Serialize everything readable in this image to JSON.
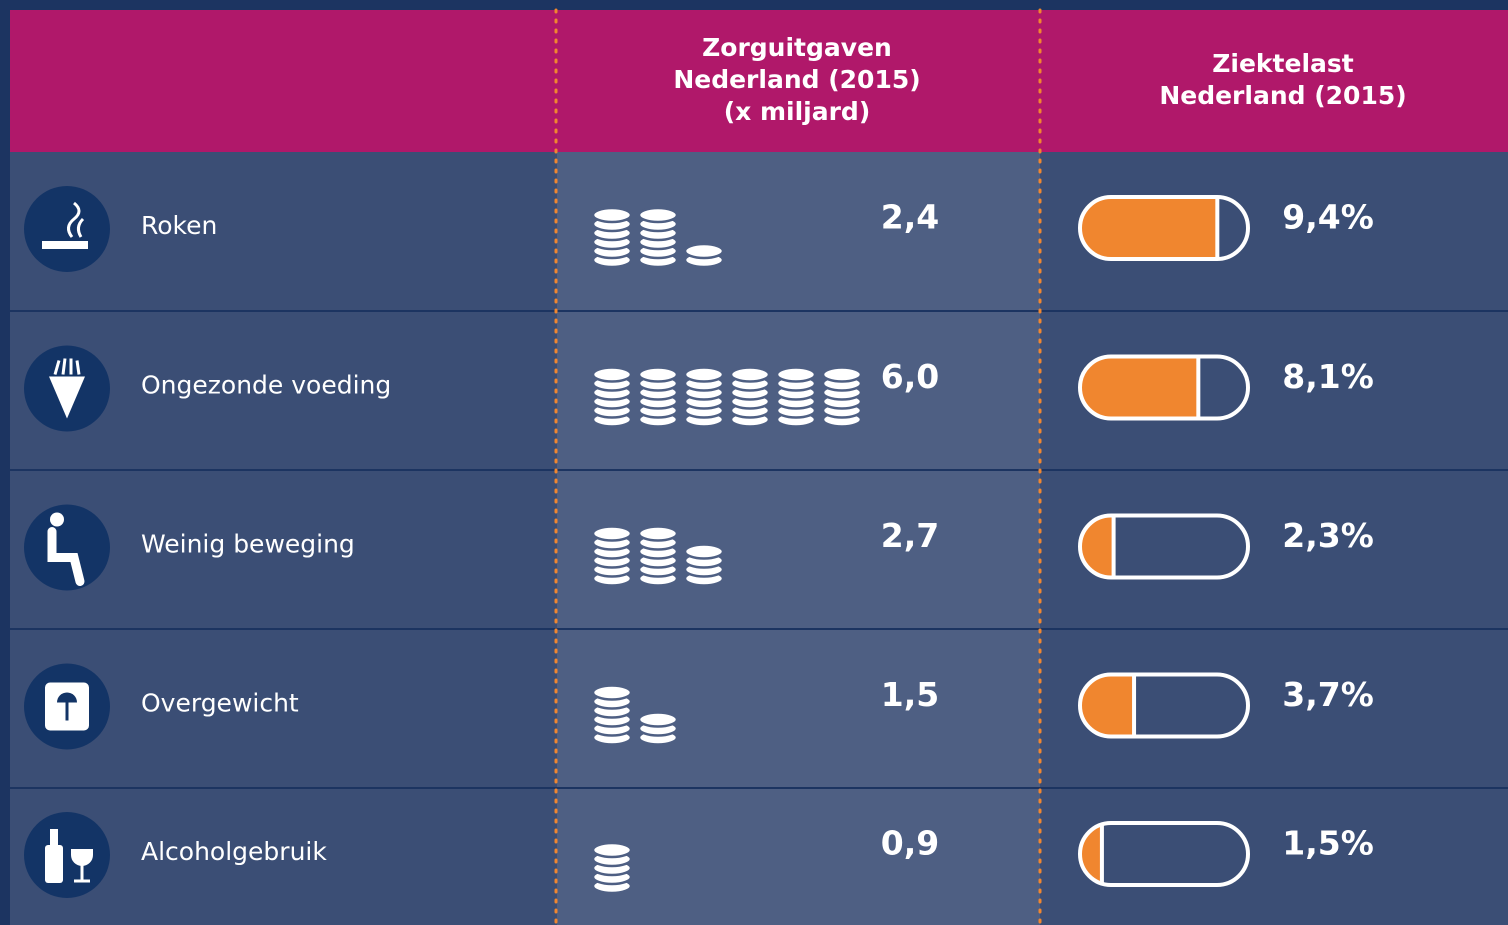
{
  "header": {
    "costs": [
      "Zorguitgaven",
      "Nederland (2015)",
      "(x miljard)"
    ],
    "burden": [
      "Ziektelast",
      "Nederland (2015)"
    ]
  },
  "rows": [
    {
      "label": "Roken",
      "costs": "2,4",
      "burden": "9,4%"
    },
    {
      "label": "Ongezonde voeding",
      "costs": "6,0",
      "burden": "8,1%"
    },
    {
      "label": "Weinig beweging",
      "costs": "2,7",
      "burden": "2,3%"
    },
    {
      "label": "Overgewicht",
      "costs": "1,5",
      "burden": "3,7%"
    },
    {
      "label": "Alcoholgebruik",
      "costs": "0,9",
      "burden": "1,5%"
    }
  ]
}
